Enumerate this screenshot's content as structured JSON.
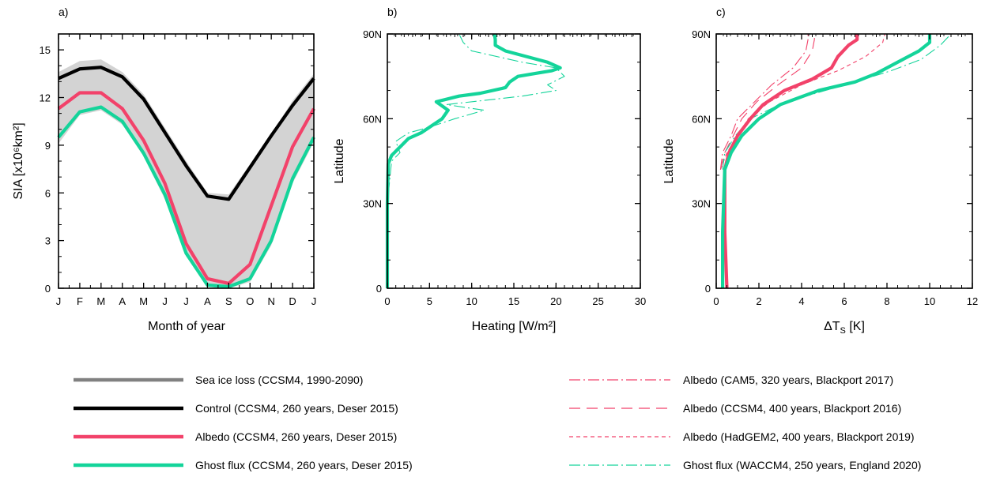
{
  "chart_data": [
    {
      "type": "line",
      "panel_label": "a)",
      "xlabel": "Month of year",
      "ylabel": "SIA [x10⁶km²]",
      "x_tick_labels": [
        "J",
        "F",
        "M",
        "A",
        "M",
        "J",
        "J",
        "A",
        "S",
        "O",
        "N",
        "D",
        "J"
      ],
      "y_ticks": [
        0,
        3,
        6,
        9,
        12,
        15
      ],
      "ylim": [
        0,
        16
      ],
      "xlim": [
        0,
        12
      ],
      "band": {
        "name": "Sea ice loss (CCSM4, 1990-2090)",
        "color": "#d3d3d3",
        "upper": [
          13.6,
          14.3,
          14.4,
          13.6,
          12.2,
          10.1,
          8.0,
          6.0,
          5.9,
          7.8,
          9.7,
          11.8,
          13.5
        ],
        "lower": [
          9.1,
          10.9,
          11.2,
          10.3,
          8.3,
          5.6,
          2.0,
          0.1,
          0.0,
          0.4,
          2.7,
          6.6,
          9.2
        ]
      },
      "series": [
        {
          "name": "Control (CCSM4, 260 years, Deser 2015)",
          "color": "#000000",
          "values": [
            13.2,
            13.8,
            13.9,
            13.3,
            11.9,
            9.8,
            7.7,
            5.8,
            5.6,
            7.6,
            9.6,
            11.5,
            13.2
          ]
        },
        {
          "name": "Albedo (CCSM4, 260 years, Deser 2015)",
          "color": "#f2426a",
          "values": [
            11.3,
            12.3,
            12.3,
            11.3,
            9.3,
            6.6,
            2.8,
            0.6,
            0.3,
            1.5,
            5.2,
            8.9,
            11.3
          ]
        },
        {
          "name": "Ghost flux (CCSM4, 260 years, Deser 2015)",
          "color": "#14d49a",
          "values": [
            9.5,
            11.1,
            11.4,
            10.5,
            8.5,
            5.9,
            2.2,
            0.2,
            0.1,
            0.6,
            3.0,
            6.9,
            9.5
          ]
        }
      ]
    },
    {
      "type": "line",
      "panel_label": "b)",
      "xlabel": "Heating [W/m²]",
      "ylabel": "Latitude",
      "x_ticks": [
        0,
        5,
        10,
        15,
        20,
        25,
        30
      ],
      "xlim": [
        0,
        30
      ],
      "ylim": [
        0,
        90
      ],
      "y_ticks": [
        0,
        30,
        60,
        90
      ],
      "y_tick_labels": [
        "0",
        "30N",
        "60N",
        "90N"
      ],
      "series": [
        {
          "name": "Ghost flux (CCSM4, 260 years, Deser 2015)",
          "color": "#14d49a",
          "style": "solid",
          "x": [
            0,
            0,
            0.1,
            0.5,
            1.5,
            2.5,
            4,
            5.5,
            6.5,
            7.2,
            5.8,
            8.5,
            11,
            14,
            14.5,
            15.5,
            17.5,
            19.5,
            20.5,
            19,
            14,
            12.8,
            12.8,
            12.7
          ],
          "y": [
            0,
            30,
            44,
            47,
            50,
            53,
            55,
            58,
            60,
            63,
            66,
            68,
            69,
            71,
            73,
            75,
            76,
            77,
            78,
            80,
            84,
            86,
            88,
            90
          ]
        },
        {
          "name": "Ghost flux (WACCM4, 250 years, England 2020)",
          "color": "#14d49a",
          "style": "dashdot",
          "x": [
            0,
            0,
            0.5,
            1.5,
            1.0,
            2.5,
            5,
            8,
            11.5,
            7,
            16,
            20,
            19,
            21,
            20,
            16,
            10,
            9,
            8.5
          ],
          "y": [
            0,
            30,
            45,
            48,
            52,
            55,
            57,
            60,
            63,
            65,
            68,
            70,
            72,
            75,
            78,
            80,
            84,
            87,
            90
          ]
        }
      ]
    },
    {
      "type": "line",
      "panel_label": "c)",
      "xlabel": "ΔTS [K]",
      "ylabel": "Latitude",
      "x_ticks": [
        0,
        2,
        4,
        6,
        8,
        10,
        12
      ],
      "xlim": [
        0,
        12
      ],
      "ylim": [
        0,
        90
      ],
      "y_ticks": [
        0,
        30,
        60,
        90
      ],
      "y_tick_labels": [
        "0",
        "30N",
        "60N",
        "90N"
      ],
      "series": [
        {
          "name": "Albedo (CCSM4, 260 years, Deser 2015)",
          "color": "#f2426a",
          "style": "solid",
          "x": [
            0.5,
            0.4,
            0.4,
            0.6,
            1.0,
            1.6,
            2.2,
            3.2,
            4.5,
            5.4,
            5.7,
            6.2,
            6.6,
            6.6
          ],
          "y": [
            0,
            20,
            42,
            48,
            54,
            60,
            65,
            70,
            74,
            78,
            82,
            86,
            88,
            90
          ]
        },
        {
          "name": "Ghost flux (CCSM4, 260 years, Deser 2015)",
          "color": "#14d49a",
          "style": "solid",
          "x": [
            0.3,
            0.3,
            0.4,
            0.7,
            1.2,
            2.0,
            3.0,
            4.8,
            6.5,
            7.5,
            8.5,
            9.5,
            10.0,
            10.0
          ],
          "y": [
            0,
            20,
            42,
            48,
            54,
            60,
            65,
            70,
            73,
            76,
            80,
            84,
            87,
            90
          ]
        },
        {
          "name": "Albedo (CAM5, 320 years, Blackport 2017)",
          "color": "#f2426a",
          "style": "dashdot",
          "x": [
            0.2,
            0.3,
            0.7,
            1.0,
            1.8,
            2.6,
            3.6,
            4.2,
            4.3,
            4.3
          ],
          "y": [
            42,
            48,
            54,
            60,
            66,
            72,
            78,
            84,
            88,
            90
          ]
        },
        {
          "name": "Albedo (CCSM4, 400 years, Blackport 2016)",
          "color": "#f2426a",
          "style": "dash",
          "x": [
            0.2,
            0.4,
            0.8,
            1.2,
            1.9,
            2.9,
            4.0,
            4.5,
            4.6,
            4.6
          ],
          "y": [
            42,
            48,
            54,
            60,
            66,
            72,
            78,
            84,
            88,
            90
          ]
        },
        {
          "name": "Albedo (HadGEM2, 400 years, Blackport 2019)",
          "color": "#f2426a",
          "style": "shortdash",
          "x": [
            0.2,
            0.5,
            1.0,
            1.5,
            2.5,
            4.0,
            5.7,
            7.0,
            7.8,
            7.9
          ],
          "y": [
            42,
            48,
            54,
            60,
            66,
            72,
            77,
            82,
            87,
            90
          ]
        },
        {
          "name": "Ghost flux (WACCM4, 250 years, England 2020)",
          "color": "#14d49a",
          "style": "dashdot",
          "x": [
            0.3,
            0.4,
            0.9,
            1.6,
            2.7,
            4.2,
            6.5,
            8.2,
            9.6,
            10.5,
            11.0
          ],
          "y": [
            42,
            48,
            54,
            60,
            64,
            68,
            73,
            77,
            81,
            86,
            90
          ]
        }
      ]
    }
  ],
  "legend": {
    "left": [
      {
        "label": "Sea ice loss (CCSM4, 1990-2090)",
        "color": "#808080",
        "style": "solid"
      },
      {
        "label": "Control (CCSM4, 260 years, Deser 2015)",
        "color": "#000000",
        "style": "solid"
      },
      {
        "label": "Albedo (CCSM4, 260 years, Deser 2015)",
        "color": "#f2426a",
        "style": "solid"
      },
      {
        "label": "Ghost flux (CCSM4, 260 years, Deser 2015)",
        "color": "#14d49a",
        "style": "solid"
      }
    ],
    "right": [
      {
        "label": "Albedo (CAM5, 320 years, Blackport 2017)",
        "color": "#f2426a",
        "style": "dashdot"
      },
      {
        "label": "Albedo (CCSM4, 400 years, Blackport 2016)",
        "color": "#f2426a",
        "style": "dash"
      },
      {
        "label": "Albedo (HadGEM2, 400 years, Blackport 2019)",
        "color": "#f2426a",
        "style": "shortdash"
      },
      {
        "label": "Ghost flux (WACCM4, 250 years, England 2020)",
        "color": "#14d49a",
        "style": "dashdot"
      }
    ]
  }
}
